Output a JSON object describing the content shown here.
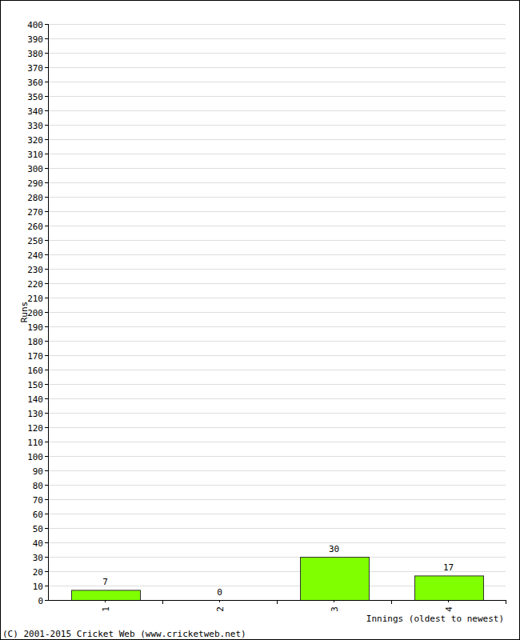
{
  "chart_data": {
    "type": "bar",
    "categories": [
      "1",
      "2",
      "3",
      "4"
    ],
    "values": [
      7,
      0,
      30,
      17
    ],
    "color": "#80ff00",
    "ylim": [
      0,
      400
    ],
    "yticks": [
      0,
      10,
      20,
      30,
      40,
      50,
      60,
      70,
      80,
      90,
      100,
      110,
      120,
      130,
      140,
      150,
      160,
      170,
      180,
      190,
      200,
      210,
      220,
      230,
      240,
      250,
      260,
      270,
      280,
      290,
      300,
      310,
      320,
      330,
      340,
      350,
      360,
      370,
      380,
      390,
      400
    ],
    "grid": true,
    "data_labels": true,
    "x_label": "Innings (oldest to newest)",
    "y_label": "Runs",
    "annotations": [
      "(C) 2001-2015 Cricket Web (www.cricketweb.net)"
    ]
  }
}
